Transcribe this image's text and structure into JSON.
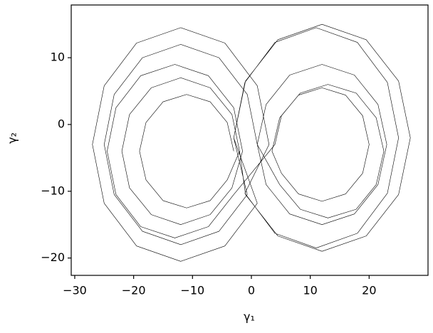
{
  "chart_data": {
    "type": "line",
    "x_label": "γ₁",
    "y_label": "γ₂",
    "xlim": [
      -30.6,
      30
    ],
    "ylim": [
      -22.6,
      17.9
    ],
    "xticks": [
      {
        "value": -30,
        "label": "−30"
      },
      {
        "value": -20,
        "label": "−20"
      },
      {
        "value": -10,
        "label": "−10"
      },
      0,
      10,
      20
    ],
    "yticks": [
      {
        "value": -20,
        "label": "−20"
      },
      {
        "value": -10,
        "label": "−10"
      },
      0,
      10
    ],
    "series": [
      {
        "color": "#000000",
        "x": [
          -3,
          -4.1,
          -7,
          -11,
          -15,
          -17.9,
          -19,
          -17.9,
          -15,
          -11,
          -7,
          -4.1,
          -2,
          -3.3,
          -7,
          -12,
          -17,
          -20.7,
          -22,
          -20.7,
          -17,
          -12,
          -7,
          -3.3,
          -1.5,
          -3,
          -7.3,
          -13,
          -18.8,
          -23,
          -24.5,
          -23,
          -18.8,
          -13,
          -7.3,
          -3,
          4,
          5.1,
          8,
          12,
          16,
          18.9,
          20,
          18.9,
          16,
          12,
          8,
          5.1,
          3.5,
          4.8,
          8.3,
          13,
          17.8,
          21.2,
          22.5,
          21.2,
          17.8,
          13,
          8.3,
          4.8,
          1,
          2.5,
          6.5,
          12,
          17.5,
          21.5,
          23,
          21.5,
          17.5,
          12,
          6.5,
          2.5,
          1,
          -0.7,
          -5.5,
          -12,
          -18.5,
          -23.3,
          -25,
          -23.3,
          -18.5,
          -12,
          -5.5,
          -0.7,
          -3,
          -1.1,
          4,
          11,
          18,
          23.1,
          25,
          23.1,
          18,
          11,
          4,
          -1.1,
          3,
          1,
          -4.5,
          -12,
          -19.5,
          -25,
          -27,
          -25,
          -19.5,
          -12,
          -4.5,
          1,
          -3,
          -1,
          4.5,
          12,
          19.5,
          25,
          27,
          25,
          19.5,
          12,
          4.5,
          -1,
          -2
        ],
        "values": [
          -4,
          0.3,
          3.4,
          4.5,
          3.4,
          0.3,
          -4,
          -8.3,
          -11.4,
          -12.5,
          -11.4,
          -8.3,
          -4,
          1.5,
          5.5,
          7,
          5.5,
          1.5,
          -4,
          -9.5,
          -13.5,
          -15,
          -13.5,
          -9.5,
          -4,
          2.5,
          7.3,
          9,
          7.3,
          2.5,
          -4,
          -10.5,
          -15.3,
          -17,
          -15.3,
          -10.5,
          -3,
          1.3,
          4.4,
          5.5,
          4.4,
          1.3,
          -3,
          -7.3,
          -10.4,
          -11.5,
          -10.4,
          -7.3,
          -4,
          1,
          4.7,
          6,
          4.7,
          1,
          -4,
          -9,
          -12.7,
          -14,
          -12.7,
          -9,
          -3,
          3,
          7.4,
          9,
          7.4,
          3,
          -3,
          -9,
          -13.4,
          -15,
          -13.4,
          -9,
          -3,
          4.5,
          10,
          12,
          10,
          4.5,
          -3,
          -10.5,
          -16,
          -18,
          -16,
          -10.5,
          -2,
          6.3,
          12.3,
          14.5,
          12.3,
          6.3,
          -2,
          -10.3,
          -16.3,
          -18.5,
          -16.3,
          -10.3,
          -3,
          5.8,
          12.2,
          14.5,
          12.2,
          5.8,
          -3,
          -11.8,
          -18.2,
          -20.5,
          -18.2,
          -11.8,
          -2,
          6.5,
          12.7,
          15,
          12.7,
          6.5,
          -2,
          -10.5,
          -16.7,
          -19,
          -16.7,
          -10.5,
          -4
        ]
      }
    ]
  }
}
